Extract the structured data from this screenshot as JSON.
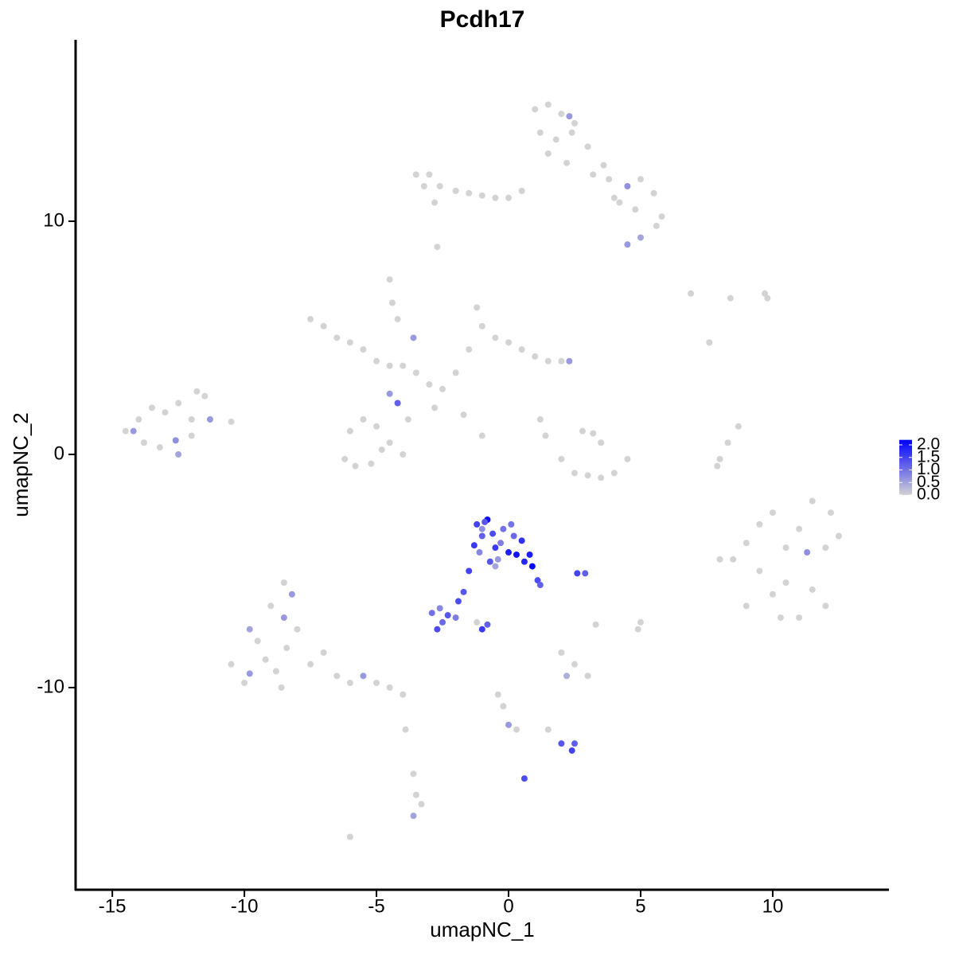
{
  "chart_data": {
    "type": "scatter",
    "title": "Pcdh17",
    "x_label": "umapNC_1",
    "y_label": "umapNC_2",
    "xlim": [
      -16.39,
      14.4
    ],
    "ylim": [
      -18.67,
      17.78
    ],
    "xticks": [
      -15,
      -10,
      -5,
      0,
      5,
      10
    ],
    "yticks": [
      -10,
      0,
      10
    ],
    "color_low": "#d3d3d3",
    "color_high": "#0000ff",
    "clim": [
      0,
      2.2
    ],
    "cticks": [
      {
        "value": 0,
        "label": "0.0"
      },
      {
        "value": 0.5,
        "label": "0.5"
      },
      {
        "value": 1,
        "label": "1.0"
      },
      {
        "value": 1.5,
        "label": "1.5"
      },
      {
        "value": 2,
        "label": "2.0"
      }
    ],
    "x": [
      1.0,
      1.5,
      2.0,
      2.5,
      1.2,
      1.8,
      2.4,
      3.0,
      1.5,
      2.2,
      3.2,
      3.8,
      4.5,
      5.0,
      5.5,
      4.0,
      4.8,
      5.6,
      5.0,
      4.5,
      2.3,
      3.6,
      4.2,
      5.8,
      -3.5,
      -3.0,
      -2.6,
      -2.0,
      -1.5,
      -1.0,
      -0.5,
      0.0,
      0.5,
      -3.2,
      -2.8,
      -2.7,
      -7.5,
      -7.0,
      -6.5,
      -6.0,
      -5.5,
      -5.0,
      -4.5,
      -4.0,
      -3.5,
      -3.0,
      -2.5,
      -2.0,
      -1.5,
      -1.0,
      -1.2,
      -0.5,
      0.0,
      0.5,
      1.0,
      1.5,
      2.0,
      2.3,
      -4.5,
      -4.4,
      -4.2,
      -4.5,
      -4.2,
      -2.8,
      -5.5,
      -6.0,
      -5.0,
      -4.5,
      -4.0,
      -3.8,
      -6.2,
      -5.8,
      -4.8,
      -5.2,
      -1.0,
      -1.7,
      -3.6,
      -14.5,
      -14.0,
      -13.5,
      -13.0,
      -12.5,
      -12.0,
      -11.5,
      -11.3,
      -10.5,
      -13.8,
      -13.2,
      -12.6,
      -12.0,
      -11.8,
      -14.2,
      -12.5,
      2.0,
      2.5,
      3.0,
      3.5,
      4.0,
      4.5,
      3.2,
      2.8,
      3.5,
      1.2,
      1.4,
      8.0,
      8.3,
      8.7,
      7.9,
      8.5,
      9.0,
      9.5,
      10.0,
      10.5,
      11.0,
      11.5,
      12.0,
      12.5,
      9.5,
      10.0,
      11.0,
      11.5,
      12.0,
      10.5,
      9.0,
      8.0,
      11.3,
      10.3,
      12.2,
      -10.5,
      -10.0,
      -9.5,
      -9.0,
      -8.5,
      -8.0,
      -7.5,
      -7.0,
      -6.5,
      -6.0,
      -5.5,
      -5.0,
      -4.5,
      -4.0,
      -9.2,
      -8.6,
      -8.2,
      -8.5,
      -9.8,
      -8.8,
      -8.4,
      -9.8,
      -1.2,
      -1.0,
      -0.8,
      -0.5,
      -0.2,
      0.0,
      0.3,
      0.6,
      0.9,
      1.1,
      -1.1,
      -0.7,
      -0.3,
      0.2,
      0.5,
      -0.9,
      -0.4,
      0.1,
      -1.3,
      -0.6,
      0.8,
      1.2,
      -1.5,
      -1.7,
      -1.9,
      -1.0,
      -0.5,
      -2.9,
      -2.6,
      -2.3,
      -2.0,
      -2.5,
      -2.7,
      -1.0,
      -0.8,
      2.6,
      2.9,
      -1.2,
      -0.4,
      -0.2,
      0.0,
      0.3,
      1.5,
      2.0,
      2.4,
      2.5,
      2.2,
      0.6,
      -3.6,
      -3.5,
      -3.3,
      -3.6,
      -6.0,
      -3.9,
      2.0,
      2.5,
      3.0,
      5.0,
      4.9,
      3.3,
      6.9,
      7.6,
      9.8,
      9.7,
      8.4
    ],
    "y": [
      14.8,
      15.0,
      14.6,
      14.2,
      13.8,
      13.5,
      13.8,
      13.2,
      12.9,
      12.5,
      12.0,
      11.8,
      11.5,
      11.8,
      11.2,
      11.0,
      10.5,
      9.8,
      9.3,
      9.0,
      14.5,
      12.4,
      10.8,
      10.2,
      12.0,
      12.0,
      11.5,
      11.3,
      11.2,
      11.1,
      11.0,
      11.0,
      11.3,
      11.5,
      10.8,
      8.9,
      5.8,
      5.5,
      5.0,
      4.8,
      4.5,
      4.0,
      3.8,
      3.8,
      3.5,
      3.0,
      2.8,
      3.5,
      4.5,
      5.5,
      6.3,
      5.0,
      4.8,
      4.5,
      4.2,
      4.0,
      4.0,
      4.0,
      7.5,
      6.5,
      5.8,
      2.6,
      2.2,
      2.0,
      1.5,
      1.0,
      1.2,
      0.5,
      0.0,
      1.5,
      -0.2,
      -0.5,
      0.2,
      -0.4,
      0.8,
      1.7,
      5.0,
      1.0,
      1.5,
      2.0,
      1.8,
      2.2,
      1.5,
      2.5,
      1.5,
      1.4,
      0.5,
      0.3,
      0.6,
      0.8,
      2.7,
      1.0,
      0.0,
      -0.2,
      -0.8,
      -0.9,
      -1.0,
      -0.8,
      -0.2,
      0.9,
      1.0,
      0.5,
      1.5,
      0.8,
      -0.2,
      0.5,
      1.2,
      -0.5,
      -4.5,
      -6.5,
      -3.0,
      -2.5,
      -5.5,
      -7.0,
      -2.0,
      -4.0,
      -3.5,
      -5.0,
      -6.0,
      -3.2,
      -5.8,
      -6.5,
      -4.0,
      -3.8,
      -4.5,
      -4.2,
      -7.0,
      -2.5,
      -9.0,
      -9.8,
      -8.0,
      -6.5,
      -5.5,
      -7.5,
      -9.0,
      -8.5,
      -9.5,
      -9.8,
      -9.5,
      -9.8,
      -10.0,
      -10.3,
      -8.8,
      -10.0,
      -6.0,
      -7.0,
      -7.5,
      -9.3,
      -8.3,
      -9.4,
      -3.0,
      -3.5,
      -2.8,
      -4.0,
      -3.2,
      -4.2,
      -4.3,
      -4.6,
      -4.8,
      -5.4,
      -4.2,
      -4.6,
      -3.8,
      -3.5,
      -3.7,
      -2.9,
      -4.5,
      -3.0,
      -3.9,
      -3.4,
      -4.3,
      -5.6,
      -5.0,
      -5.9,
      -6.3,
      -3.2,
      -4.8,
      -6.8,
      -6.6,
      -6.9,
      -7.0,
      -7.2,
      -7.5,
      -7.5,
      -7.3,
      -5.1,
      -5.1,
      -7.2,
      -10.3,
      -10.8,
      -11.6,
      -11.8,
      -11.8,
      -12.4,
      -12.7,
      -12.4,
      -9.5,
      -13.9,
      -13.7,
      -14.6,
      -15.0,
      -15.5,
      -16.4,
      -11.8,
      -8.5,
      -9.0,
      -9.5,
      -7.2,
      -7.5,
      -7.3,
      6.9,
      4.8,
      6.7,
      6.9,
      6.7
    ],
    "values": [
      0,
      0,
      0,
      0,
      0,
      0,
      0,
      0,
      0,
      0,
      0,
      0,
      0.7,
      0,
      0,
      0,
      0,
      0,
      0.5,
      0.6,
      0.6,
      0,
      0,
      0,
      0,
      0,
      0,
      0,
      0,
      0,
      0,
      0,
      0,
      0,
      0,
      0,
      0,
      0,
      0,
      0,
      0,
      0,
      0,
      0,
      0,
      0,
      0,
      0,
      0,
      0,
      0,
      0,
      0,
      0,
      0,
      0,
      0,
      0.6,
      0,
      0,
      0,
      0.6,
      1.2,
      0,
      0,
      0,
      0,
      0,
      0,
      0,
      0,
      0,
      0,
      0,
      0,
      0,
      0.6,
      0,
      0,
      0,
      0,
      0,
      0,
      0,
      0.6,
      0,
      0,
      0,
      0.7,
      0,
      0,
      0.6,
      0.5,
      0,
      0,
      0,
      0,
      0,
      0,
      0,
      0,
      0,
      0,
      0,
      0,
      0,
      0,
      0,
      0,
      0,
      0,
      0,
      0,
      0,
      0,
      0,
      0,
      0,
      0,
      0,
      0,
      0,
      0,
      0,
      0,
      0.7,
      0,
      0,
      0,
      0,
      0,
      0,
      0,
      0,
      0,
      0,
      0,
      0,
      0.6,
      0,
      0,
      0,
      0,
      0,
      0.6,
      0.6,
      0.5,
      0,
      0,
      0.6,
      1.5,
      1.2,
      2.1,
      1.6,
      1.0,
      1.9,
      2.0,
      1.8,
      2.1,
      1.4,
      0.8,
      1.3,
      0.9,
      1.1,
      1.7,
      1.3,
      0.6,
      1.0,
      1.6,
      1.4,
      1.9,
      1.2,
      1.5,
      1.3,
      1.4,
      0.7,
      0.5,
      1.0,
      0.8,
      1.3,
      0.9,
      1.1,
      1.4,
      1.6,
      1.2,
      1.5,
      1.2,
      0,
      0,
      0,
      0.6,
      0,
      0,
      1.3,
      1.5,
      1.2,
      0.4,
      1.4,
      0,
      0,
      0,
      0.5,
      0,
      0,
      0,
      0,
      0,
      0,
      0,
      0,
      0,
      0,
      0,
      0,
      0
    ]
  }
}
